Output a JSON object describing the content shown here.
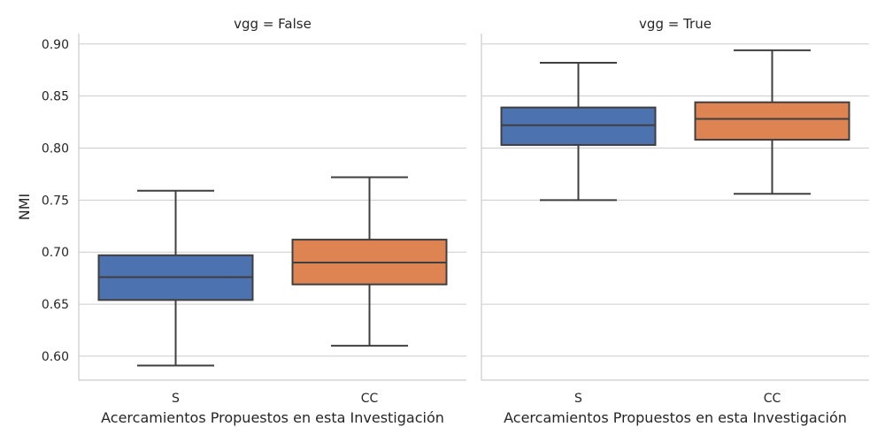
{
  "chart_data": {
    "type": "box",
    "ylabel": "NMI",
    "xlabel": "Acercamientos Propuestos en esta Investigación",
    "categories": [
      "S",
      "CC"
    ],
    "ylim": [
      0.577,
      0.91
    ],
    "yticks": [
      0.6,
      0.65,
      0.7,
      0.75,
      0.8,
      0.85,
      0.9
    ],
    "ytick_labels": [
      "0.60",
      "0.65",
      "0.70",
      "0.75",
      "0.80",
      "0.85",
      "0.90"
    ],
    "grid": "horizontal",
    "colors": {
      "S": "#4c72b0",
      "CC": "#dd8452",
      "line": "#3f3f3f",
      "grid": "#cccccc",
      "spine": "#cccccc"
    },
    "panels": [
      {
        "title": "vgg = False",
        "boxes": [
          {
            "category": "S",
            "whisker_low": 0.591,
            "q1": 0.654,
            "median": 0.676,
            "q3": 0.697,
            "whisker_high": 0.759
          },
          {
            "category": "CC",
            "whisker_low": 0.61,
            "q1": 0.669,
            "median": 0.69,
            "q3": 0.712,
            "whisker_high": 0.772
          }
        ]
      },
      {
        "title": "vgg = True",
        "boxes": [
          {
            "category": "S",
            "whisker_low": 0.75,
            "q1": 0.803,
            "median": 0.822,
            "q3": 0.839,
            "whisker_high": 0.882
          },
          {
            "category": "CC",
            "whisker_low": 0.756,
            "q1": 0.808,
            "median": 0.828,
            "q3": 0.844,
            "whisker_high": 0.894
          }
        ]
      }
    ]
  }
}
